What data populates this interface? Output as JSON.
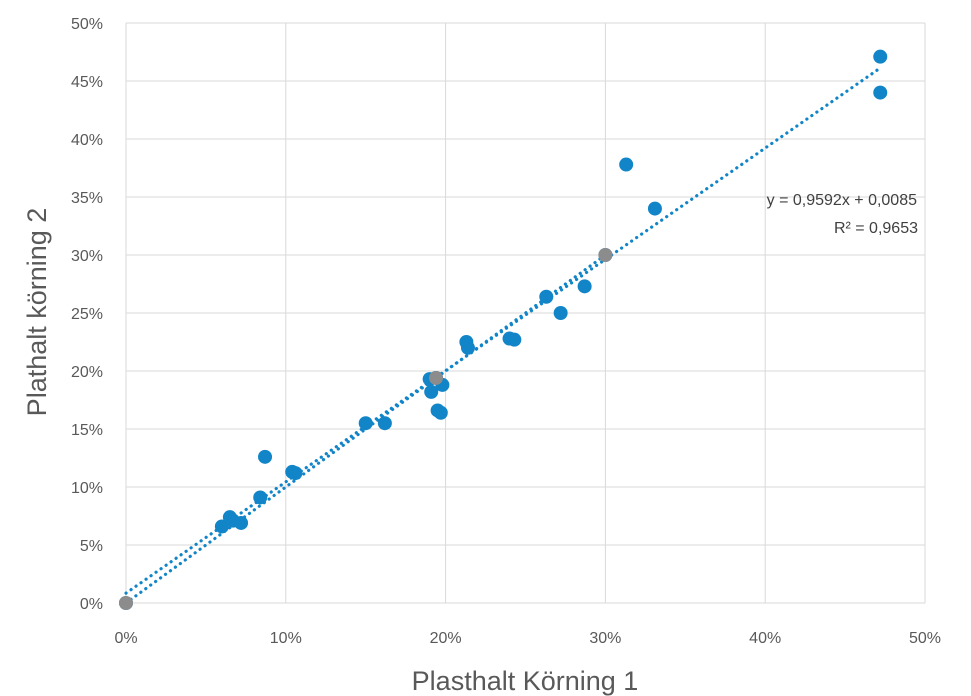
{
  "chart_data": {
    "type": "scatter",
    "title": "",
    "xlabel": "Plasthalt Körning 1",
    "ylabel": "Plathalt körning 2",
    "xlim": [
      0,
      0.5
    ],
    "ylim": [
      0,
      0.5
    ],
    "x_ticks": [
      "0%",
      "10%",
      "20%",
      "30%",
      "40%",
      "50%"
    ],
    "y_ticks": [
      "0%",
      "5%",
      "10%",
      "15%",
      "20%",
      "25%",
      "30%",
      "35%",
      "40%",
      "45%",
      "50%"
    ],
    "grid": true,
    "legend": "none",
    "colors": {
      "point": "#1185C8",
      "highlight": "#8C8C8C",
      "trendline": "#1185C8",
      "grid": "#D9D9D9"
    },
    "points": [
      {
        "x": 0.0,
        "y": 0.0
      },
      {
        "x": 0.06,
        "y": 0.066
      },
      {
        "x": 0.065,
        "y": 0.074
      },
      {
        "x": 0.067,
        "y": 0.071
      },
      {
        "x": 0.072,
        "y": 0.069
      },
      {
        "x": 0.084,
        "y": 0.091
      },
      {
        "x": 0.087,
        "y": 0.126
      },
      {
        "x": 0.104,
        "y": 0.113
      },
      {
        "x": 0.106,
        "y": 0.112
      },
      {
        "x": 0.15,
        "y": 0.155
      },
      {
        "x": 0.162,
        "y": 0.155
      },
      {
        "x": 0.19,
        "y": 0.193
      },
      {
        "x": 0.191,
        "y": 0.182
      },
      {
        "x": 0.194,
        "y": 0.194
      },
      {
        "x": 0.195,
        "y": 0.166
      },
      {
        "x": 0.197,
        "y": 0.164
      },
      {
        "x": 0.198,
        "y": 0.188
      },
      {
        "x": 0.213,
        "y": 0.225
      },
      {
        "x": 0.214,
        "y": 0.22
      },
      {
        "x": 0.24,
        "y": 0.228
      },
      {
        "x": 0.243,
        "y": 0.227
      },
      {
        "x": 0.263,
        "y": 0.264
      },
      {
        "x": 0.272,
        "y": 0.25
      },
      {
        "x": 0.287,
        "y": 0.273
      },
      {
        "x": 0.3,
        "y": 0.3
      },
      {
        "x": 0.313,
        "y": 0.378
      },
      {
        "x": 0.331,
        "y": 0.34
      },
      {
        "x": 0.472,
        "y": 0.471
      },
      {
        "x": 0.472,
        "y": 0.44
      }
    ],
    "highlighted_points": [
      {
        "x": 0.0,
        "y": 0.0
      },
      {
        "x": 0.194,
        "y": 0.194
      },
      {
        "x": 0.3,
        "y": 0.3
      }
    ],
    "trendlines": [
      {
        "style": "dotted",
        "slope": 0.9592,
        "intercept": 0.0085,
        "x_range": [
          0,
          0.472
        ]
      },
      {
        "style": "dotted",
        "slope": 1.0,
        "intercept": 0.0,
        "x_range": [
          0,
          0.3
        ]
      }
    ],
    "annotations": {
      "equation": "y = 0,9592x + 0,0085",
      "r_squared": "R² = 0,9653"
    }
  }
}
